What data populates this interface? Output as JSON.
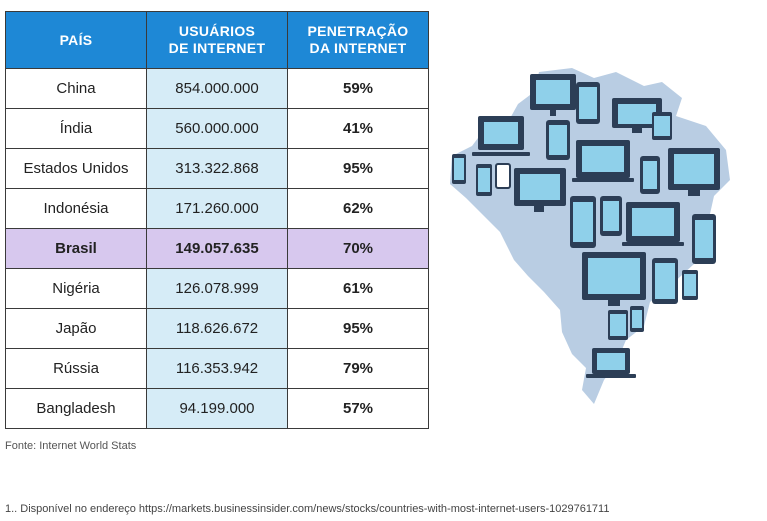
{
  "table": {
    "headers": [
      "PAÍS",
      "USUÁRIOS\nDE INTERNET",
      "PENETRAÇÃO\nDA INTERNET"
    ],
    "rows": [
      {
        "country": "China",
        "users": "854.000.000",
        "penetration": "59%"
      },
      {
        "country": "Índia",
        "users": "560.000.000",
        "penetration": "41%"
      },
      {
        "country": "Estados Unidos",
        "users": "313.322.868",
        "penetration": "95%"
      },
      {
        "country": "Indonésia",
        "users": "171.260.000",
        "penetration": "62%"
      },
      {
        "country": "Brasil",
        "users": "149.057.635",
        "penetration": "70%",
        "highlight": true
      },
      {
        "country": "Nigéria",
        "users": "126.078.999",
        "penetration": "61%"
      },
      {
        "country": "Japão",
        "users": "118.626.672",
        "penetration": "95%"
      },
      {
        "country": "Rússia",
        "users": "116.353.942",
        "penetration": "79%"
      },
      {
        "country": "Bangladesh",
        "users": "94.199.000",
        "penetration": "57%"
      }
    ]
  },
  "source": "Fonte: Internet World Stats",
  "footnote": "1.. Disponível no endereço https://markets.businessinsider.com/news/stocks/countries-with-most-internet-users-1029761711",
  "colors": {
    "header_bg": "#1e88d6",
    "users_col_bg": "#d6ecf7",
    "highlight_row_bg": "#d7c8ee",
    "map_fill": "#b9cde3",
    "device_frame": "#2c3e56",
    "device_screen": "#8fd0ea"
  },
  "map_icon": "brazil-map-with-devices-icon"
}
